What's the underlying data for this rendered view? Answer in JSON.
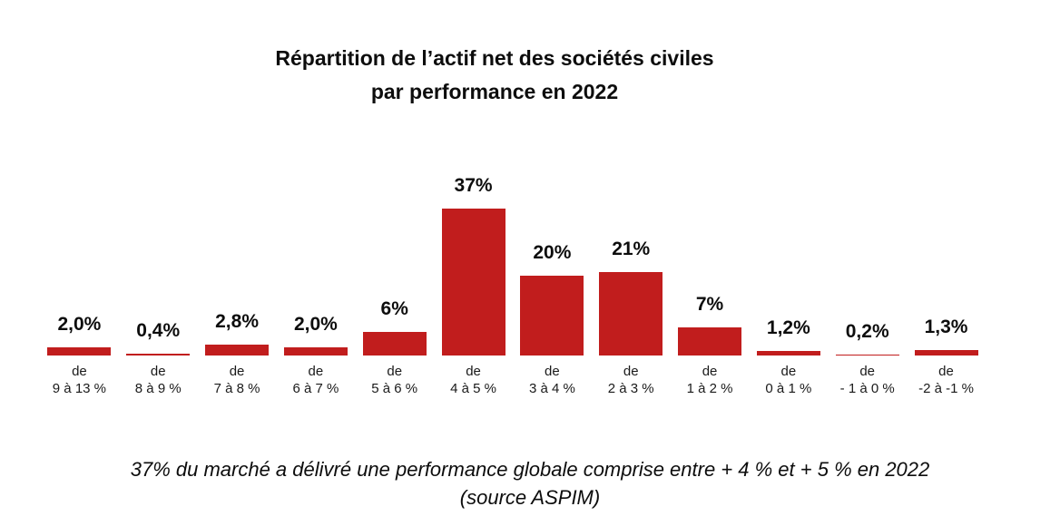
{
  "title": {
    "line1": "Répartition de l’actif net des sociétés civiles",
    "line2": "par performance en 2022"
  },
  "chart_data": {
    "type": "bar",
    "title": "Répartition de l’actif net des sociétés civiles par performance en 2022",
    "categories": [
      "de 9 à 13 %",
      "de 8 à 9 %",
      "de 7 à 8 %",
      "de 6 à 7 %",
      "de 5 à 6 %",
      "de 4 à 5 %",
      "de 3 à 4 %",
      "de 2 à 3 %",
      "de 1 à 2 %",
      "de 0 à 1 %",
      "de - 1 à 0 %",
      "de -2 à -1 %"
    ],
    "category_line1": "de",
    "category_line2": [
      "9 à 13 %",
      "8 à 9 %",
      "7 à 8 %",
      "6 à 7 %",
      "5 à 6 %",
      "4 à 5 %",
      "3 à 4 %",
      "2 à 3 %",
      "1 à 2 %",
      "0 à 1 %",
      "- 1 à 0 %",
      "-2 à -1 %"
    ],
    "values": [
      2.0,
      0.4,
      2.8,
      2.0,
      6,
      37,
      20,
      21,
      7,
      1.2,
      0.2,
      1.3
    ],
    "value_labels": [
      "2,0%",
      "0,4%",
      "2,8%",
      "2,0%",
      "6%",
      "37%",
      "20%",
      "21%",
      "7%",
      "1,2%",
      "0,2%",
      "1,3%"
    ],
    "bar_color": "#c11d1d",
    "xlabel": "",
    "ylabel": "",
    "ylim": [
      0,
      40
    ],
    "grid": false,
    "legend": false,
    "axis_lines": false
  },
  "caption": {
    "line1": "37% du marché a délivré une performance globale comprise entre + 4 % et + 5 % en 2022",
    "line2": "(source ASPIM)"
  }
}
